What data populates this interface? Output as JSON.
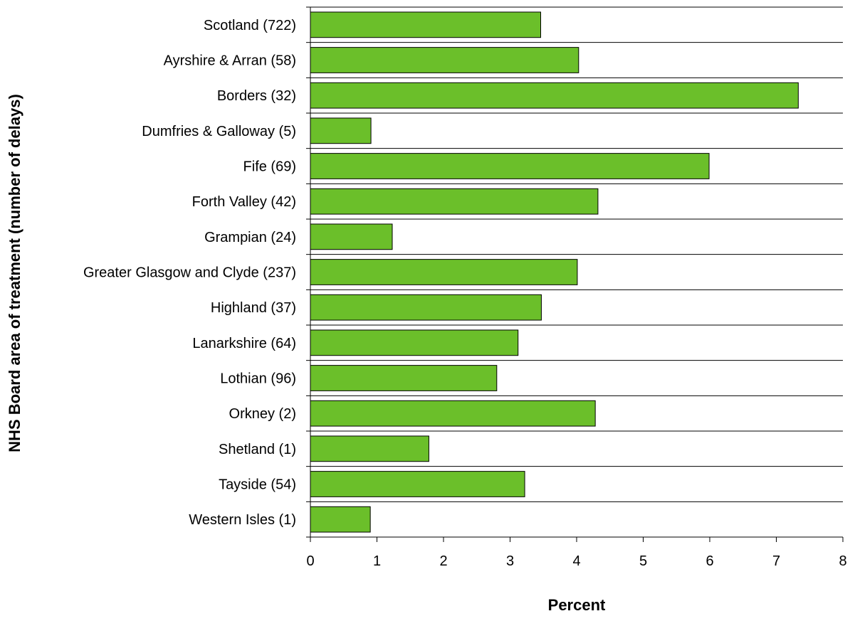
{
  "chart_data": {
    "type": "bar",
    "orientation": "horizontal",
    "title": "",
    "xlabel": "Percent",
    "ylabel": "NHS Board area of treatment (number of delays)",
    "categories": [
      "Scotland (722)",
      "Ayrshire & Arran (58)",
      "Borders (32)",
      "Dumfries & Galloway (5)",
      "Fife (69)",
      "Forth Valley (42)",
      "Grampian (24)",
      "Greater Glasgow and Clyde (237)",
      "Highland (37)",
      "Lanarkshire (64)",
      "Lothian (96)",
      "Orkney (2)",
      "Shetland (1)",
      "Tayside (54)",
      "Western Isles (1)"
    ],
    "values": [
      3.46,
      4.03,
      7.33,
      0.91,
      5.99,
      4.32,
      1.23,
      4.01,
      3.47,
      3.12,
      2.8,
      4.28,
      1.78,
      3.22,
      0.9
    ],
    "xlim": [
      0,
      8
    ],
    "xticks": [
      "0",
      "1",
      "2",
      "3",
      "4",
      "5",
      "6",
      "7",
      "8"
    ],
    "bar_color": "#6BBF2A",
    "bar_stroke": "#000000",
    "grid": "horizontal separators between categories",
    "legend": "none"
  }
}
